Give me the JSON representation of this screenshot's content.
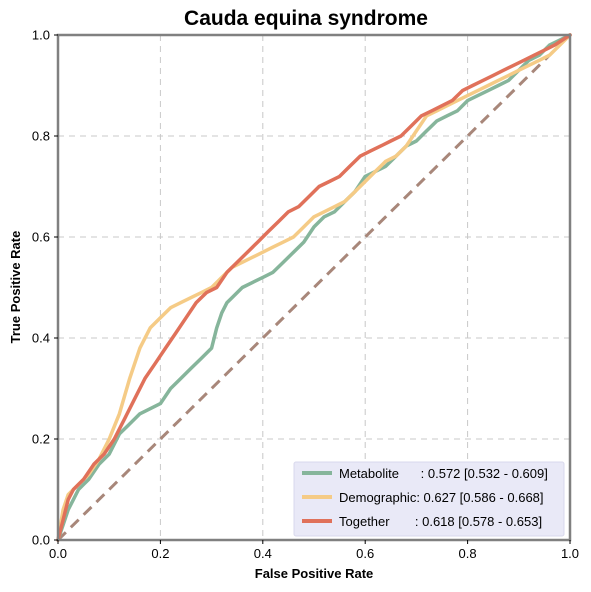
{
  "chart_data": {
    "type": "line",
    "title": "Cauda equina syndrome",
    "xlabel": "False Positive Rate",
    "ylabel": "True Positive Rate",
    "xlim": [
      0,
      1
    ],
    "ylim": [
      0,
      1
    ],
    "xticks": [
      "0.0",
      "0.2",
      "0.4",
      "0.6",
      "0.8",
      "1.0"
    ],
    "yticks": [
      "0.0",
      "0.2",
      "0.4",
      "0.6",
      "0.8",
      "1.0"
    ],
    "grid": true,
    "legend_position": "bottom-right",
    "chance_line": {
      "color": "#a8877a",
      "x": [
        0,
        1
      ],
      "y": [
        0,
        1
      ]
    },
    "series": [
      {
        "name": "Metabolite",
        "legend_label": "Metabolite      : 0.572 [0.532 - 0.609]",
        "color": "#86b59b",
        "x": [
          0,
          0.01,
          0.02,
          0.03,
          0.04,
          0.05,
          0.06,
          0.08,
          0.1,
          0.12,
          0.14,
          0.16,
          0.18,
          0.2,
          0.22,
          0.24,
          0.26,
          0.28,
          0.3,
          0.31,
          0.32,
          0.33,
          0.34,
          0.36,
          0.38,
          0.4,
          0.42,
          0.44,
          0.46,
          0.48,
          0.5,
          0.52,
          0.54,
          0.56,
          0.58,
          0.6,
          0.62,
          0.64,
          0.66,
          0.68,
          0.7,
          0.72,
          0.74,
          0.76,
          0.78,
          0.8,
          0.82,
          0.84,
          0.86,
          0.88,
          0.9,
          0.92,
          0.94,
          0.96,
          0.98,
          1
        ],
        "y": [
          0,
          0.03,
          0.06,
          0.08,
          0.1,
          0.11,
          0.12,
          0.15,
          0.17,
          0.21,
          0.23,
          0.25,
          0.26,
          0.27,
          0.3,
          0.32,
          0.34,
          0.36,
          0.38,
          0.42,
          0.45,
          0.47,
          0.48,
          0.5,
          0.51,
          0.52,
          0.53,
          0.55,
          0.57,
          0.59,
          0.62,
          0.64,
          0.65,
          0.67,
          0.69,
          0.72,
          0.73,
          0.74,
          0.76,
          0.78,
          0.79,
          0.81,
          0.83,
          0.84,
          0.85,
          0.87,
          0.88,
          0.89,
          0.9,
          0.91,
          0.93,
          0.95,
          0.96,
          0.98,
          0.99,
          1
        ]
      },
      {
        "name": "Demographic",
        "legend_label": "Demographic: 0.627 [0.586 - 0.668]",
        "color": "#f5cb86",
        "x": [
          0,
          0.01,
          0.02,
          0.04,
          0.06,
          0.08,
          0.1,
          0.12,
          0.14,
          0.16,
          0.18,
          0.2,
          0.22,
          0.24,
          0.26,
          0.28,
          0.3,
          0.32,
          0.34,
          0.36,
          0.38,
          0.4,
          0.42,
          0.44,
          0.46,
          0.48,
          0.5,
          0.52,
          0.54,
          0.56,
          0.58,
          0.6,
          0.62,
          0.64,
          0.66,
          0.68,
          0.7,
          0.72,
          0.74,
          0.76,
          0.78,
          0.8,
          0.82,
          0.84,
          0.86,
          0.88,
          0.9,
          0.92,
          0.94,
          0.96,
          0.98,
          1
        ],
        "y": [
          0,
          0.06,
          0.09,
          0.11,
          0.13,
          0.16,
          0.2,
          0.25,
          0.32,
          0.38,
          0.42,
          0.44,
          0.46,
          0.47,
          0.48,
          0.49,
          0.5,
          0.52,
          0.54,
          0.55,
          0.56,
          0.57,
          0.58,
          0.59,
          0.6,
          0.62,
          0.64,
          0.65,
          0.66,
          0.67,
          0.69,
          0.71,
          0.73,
          0.75,
          0.76,
          0.78,
          0.81,
          0.84,
          0.85,
          0.86,
          0.87,
          0.88,
          0.89,
          0.9,
          0.91,
          0.92,
          0.93,
          0.94,
          0.95,
          0.96,
          0.98,
          1
        ]
      },
      {
        "name": "Together",
        "legend_label": "Together       : 0.618 [0.578 - 0.653]",
        "color": "#e0715a",
        "x": [
          0,
          0.01,
          0.02,
          0.03,
          0.05,
          0.07,
          0.09,
          0.11,
          0.13,
          0.15,
          0.17,
          0.19,
          0.21,
          0.23,
          0.25,
          0.27,
          0.29,
          0.31,
          0.33,
          0.35,
          0.37,
          0.39,
          0.41,
          0.43,
          0.45,
          0.47,
          0.49,
          0.51,
          0.53,
          0.55,
          0.57,
          0.59,
          0.61,
          0.63,
          0.65,
          0.67,
          0.69,
          0.71,
          0.73,
          0.75,
          0.77,
          0.79,
          0.81,
          0.83,
          0.85,
          0.87,
          0.89,
          0.91,
          0.93,
          0.95,
          0.97,
          1
        ],
        "y": [
          0,
          0.04,
          0.08,
          0.1,
          0.12,
          0.15,
          0.17,
          0.2,
          0.24,
          0.28,
          0.32,
          0.35,
          0.38,
          0.41,
          0.44,
          0.47,
          0.49,
          0.5,
          0.53,
          0.55,
          0.57,
          0.59,
          0.61,
          0.63,
          0.65,
          0.66,
          0.68,
          0.7,
          0.71,
          0.72,
          0.74,
          0.76,
          0.77,
          0.78,
          0.79,
          0.8,
          0.82,
          0.84,
          0.85,
          0.86,
          0.87,
          0.89,
          0.9,
          0.91,
          0.92,
          0.93,
          0.94,
          0.95,
          0.96,
          0.97,
          0.98,
          1
        ]
      }
    ]
  }
}
